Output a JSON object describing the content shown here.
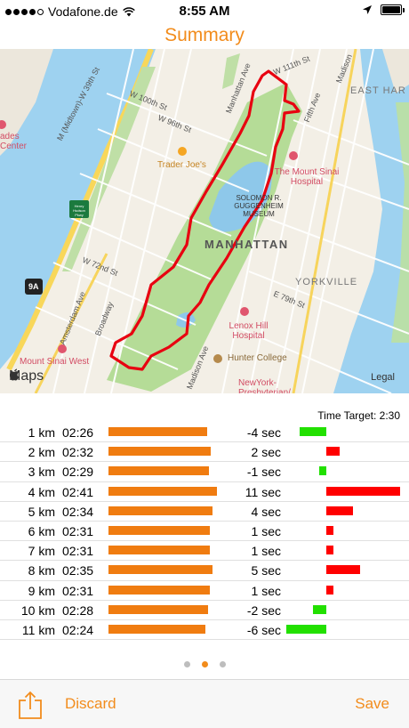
{
  "status_bar": {
    "carrier": "Vodafone.de",
    "time": "8:55 AM",
    "location_icon": "location-arrow-icon",
    "battery_icon": "battery-full-icon"
  },
  "title": "Summary",
  "map": {
    "labels": {
      "w111": "W 111th St",
      "w100": "W 100th St",
      "w96": "W 96th St",
      "w72": "W 72nd St",
      "w79": "E 79th St",
      "manhattan_ave": "Manhattan Ave",
      "fifth_ave": "Fifth Ave",
      "madison_ave_top": "Madison",
      "madison_ave": "Madison Ave",
      "broadway": "Broadway",
      "amsterdam": "Amsterdam Ave",
      "hudson": "M (Midtown)-W 39th St",
      "east_harlem": "EAST HAR",
      "manhattan": "MANHATTAN",
      "yorkville": "YORKVILLE",
      "traders": "Trader Joe's",
      "mount_sinai": "The Mount Sinai Hospital",
      "guggenheim": "SOLOMON R. GUGGENHEIM MUSEUM",
      "lenox": "Lenox Hill Hospital",
      "hunter": "Hunter College",
      "sinai_west": "Mount Sinai West",
      "presbyterian": "NewYork-Presbyterian/...",
      "centre": "ades Center",
      "highway": "9A",
      "park_sign": "Henry Hudson Pkwy"
    },
    "logo": "Maps",
    "legal": "Legal"
  },
  "time_target": "Time Target: 2:30",
  "splits": [
    {
      "km": "1 km",
      "pace": "02:26",
      "diff": "-4 sec",
      "pace_sec": 146,
      "diff_sec": -4
    },
    {
      "km": "2 km",
      "pace": "02:32",
      "diff": "2 sec",
      "pace_sec": 152,
      "diff_sec": 2
    },
    {
      "km": "3 km",
      "pace": "02:29",
      "diff": "-1 sec",
      "pace_sec": 149,
      "diff_sec": -1
    },
    {
      "km": "4 km",
      "pace": "02:41",
      "diff": "11 sec",
      "pace_sec": 161,
      "diff_sec": 11
    },
    {
      "km": "5 km",
      "pace": "02:34",
      "diff": "4 sec",
      "pace_sec": 154,
      "diff_sec": 4
    },
    {
      "km": "6 km",
      "pace": "02:31",
      "diff": "1 sec",
      "pace_sec": 151,
      "diff_sec": 1
    },
    {
      "km": "7 km",
      "pace": "02:31",
      "diff": "1 sec",
      "pace_sec": 151,
      "diff_sec": 1
    },
    {
      "km": "8 km",
      "pace": "02:35",
      "diff": "5 sec",
      "pace_sec": 155,
      "diff_sec": 5
    },
    {
      "km": "9 km",
      "pace": "02:31",
      "diff": "1 sec",
      "pace_sec": 151,
      "diff_sec": 1
    },
    {
      "km": "10 km",
      "pace": "02:28",
      "diff": "-2 sec",
      "pace_sec": 148,
      "diff_sec": -2
    },
    {
      "km": "11 km",
      "pace": "02:24",
      "diff": "-6 sec",
      "pace_sec": 144,
      "diff_sec": -6
    }
  ],
  "colors": {
    "accent": "#f28c1c",
    "pace_bar": "#f07c10",
    "faster": "#22e000",
    "slower": "#ff0000"
  },
  "page_indicator": {
    "count": 3,
    "active": 2
  },
  "toolbar": {
    "share_icon": "share-icon",
    "discard_label": "Discard",
    "save_label": "Save"
  }
}
